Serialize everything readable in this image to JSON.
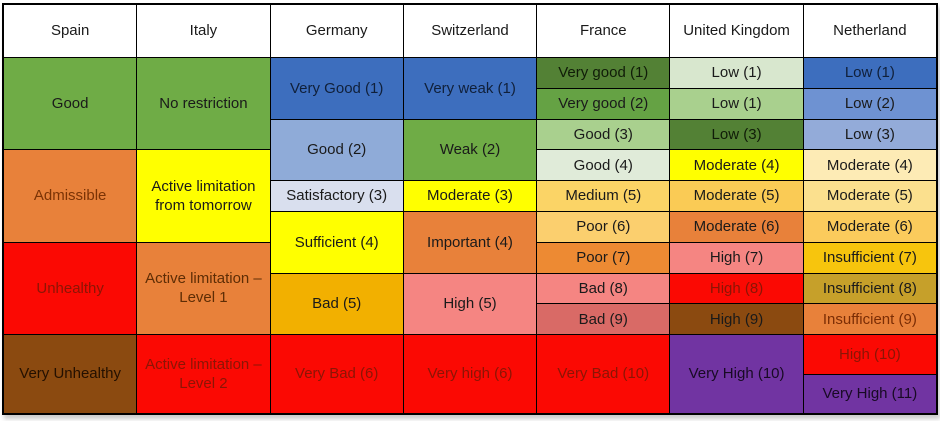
{
  "chart_data": {
    "type": "table",
    "title": "Air quality index categories and activity limitation levels by country",
    "grid": {
      "header_rows": 1,
      "body_rows": 11,
      "columns_count": 7,
      "gridlines": "black"
    },
    "columns": [
      {
        "header": "Spain",
        "cells": [
          {
            "label": "Good",
            "row": 1,
            "span": 3,
            "bg": "#6FAC46",
            "fg": "#1A1A1A"
          },
          {
            "label": "Admissible",
            "row": 4,
            "span": 3,
            "bg": "#E8813A",
            "fg": "#7B3305"
          },
          {
            "label": "Unhealthy",
            "row": 7,
            "span": 3,
            "bg": "#FB0903",
            "fg": "#8B1505"
          },
          {
            "label": "Very Unhealthy",
            "row": 10,
            "span": 2,
            "bg": "#8B4A10",
            "fg": "#241000"
          }
        ]
      },
      {
        "header": "Italy",
        "cells": [
          {
            "label": "No restriction",
            "row": 1,
            "span": 3,
            "bg": "#6FAC46",
            "fg": "#1A1A1A"
          },
          {
            "label": "Active limitation from tomorrow",
            "row": 4,
            "span": 3,
            "bg": "#FFFF00",
            "fg": "#1A1A1A"
          },
          {
            "label": "Active limitation – Level 1",
            "row": 7,
            "span": 3,
            "bg": "#E8813A",
            "fg": "#5E2D05"
          },
          {
            "label": "Active limitation – Level 2",
            "row": 10,
            "span": 2,
            "bg": "#FB0903",
            "fg": "#8B1505"
          }
        ]
      },
      {
        "header": "Germany",
        "cells": [
          {
            "label": "Very Good (1)",
            "row": 1,
            "span": 2,
            "bg": "#3D6EBE",
            "fg": "#10203A"
          },
          {
            "label": "Good (2)",
            "row": 3,
            "span": 2,
            "bg": "#8FABD8",
            "fg": "#1A1A1A"
          },
          {
            "label": "Satisfactory (3)",
            "row": 5,
            "span": 1,
            "bg": "#D9DFEE",
            "fg": "#1A1A1A"
          },
          {
            "label": "Sufficient (4)",
            "row": 6,
            "span": 2,
            "bg": "#FFFF00",
            "fg": "#1A1A1A"
          },
          {
            "label": "Bad (5)",
            "row": 8,
            "span": 2,
            "bg": "#F2B000",
            "fg": "#1A1A1A"
          },
          {
            "label": "Very Bad (6)",
            "row": 10,
            "span": 2,
            "bg": "#FB0903",
            "fg": "#8B1505"
          }
        ]
      },
      {
        "header": "Switzerland",
        "cells": [
          {
            "label": "Very weak (1)",
            "row": 1,
            "span": 2,
            "bg": "#3D6EBE",
            "fg": "#10203A"
          },
          {
            "label": "Weak (2)",
            "row": 3,
            "span": 2,
            "bg": "#6FAC46",
            "fg": "#1A1A1A"
          },
          {
            "label": "Moderate (3)",
            "row": 5,
            "span": 1,
            "bg": "#FFFF00",
            "fg": "#1A1A1A"
          },
          {
            "label": "Important (4)",
            "row": 6,
            "span": 2,
            "bg": "#E8813A",
            "fg": "#1A1A1A"
          },
          {
            "label": "High (5)",
            "row": 8,
            "span": 2,
            "bg": "#F58582",
            "fg": "#1A1A1A"
          },
          {
            "label": "Very high (6)",
            "row": 10,
            "span": 2,
            "bg": "#FB0903",
            "fg": "#8B1505"
          }
        ]
      },
      {
        "header": "France",
        "cells": [
          {
            "label": "Very good (1)",
            "row": 1,
            "span": 1,
            "bg": "#538135",
            "fg": "#101C08"
          },
          {
            "label": "Very good (2)",
            "row": 2,
            "span": 1,
            "bg": "#65A244",
            "fg": "#1A1A1A"
          },
          {
            "label": "Good (3)",
            "row": 3,
            "span": 1,
            "bg": "#A9D08E",
            "fg": "#1A1A1A"
          },
          {
            "label": "Good (4)",
            "row": 4,
            "span": 1,
            "bg": "#E0EBD9",
            "fg": "#1A1A1A"
          },
          {
            "label": "Medium (5)",
            "row": 5,
            "span": 1,
            "bg": "#FBD466",
            "fg": "#1A1A1A"
          },
          {
            "label": "Poor (6)",
            "row": 6,
            "span": 1,
            "bg": "#FBCF6E",
            "fg": "#1A1A1A"
          },
          {
            "label": "Poor (7)",
            "row": 7,
            "span": 1,
            "bg": "#ED8A33",
            "fg": "#1A1A1A"
          },
          {
            "label": "Bad (8)",
            "row": 8,
            "span": 1,
            "bg": "#F58582",
            "fg": "#1A1A1A"
          },
          {
            "label": "Bad (9)",
            "row": 9,
            "span": 1,
            "bg": "#D96A66",
            "fg": "#1A1A1A"
          },
          {
            "label": "Very Bad (10)",
            "row": 10,
            "span": 2,
            "bg": "#FB0903",
            "fg": "#8B1505"
          }
        ]
      },
      {
        "header": "United Kingdom",
        "cells": [
          {
            "label": "Low (1)",
            "row": 1,
            "span": 1,
            "bg": "#D8E7CE",
            "fg": "#1A1A1A"
          },
          {
            "label": "Low (1)",
            "row": 2,
            "span": 1,
            "bg": "#A9D08E",
            "fg": "#1A1A1A"
          },
          {
            "label": "Low (3)",
            "row": 3,
            "span": 1,
            "bg": "#538135",
            "fg": "#101C08"
          },
          {
            "label": "Moderate (4)",
            "row": 4,
            "span": 1,
            "bg": "#FFFF00",
            "fg": "#1A1A1A"
          },
          {
            "label": "Moderate (5)",
            "row": 5,
            "span": 1,
            "bg": "#FACB55",
            "fg": "#1A1A1A"
          },
          {
            "label": "Moderate (6)",
            "row": 6,
            "span": 1,
            "bg": "#E8813A",
            "fg": "#1A1A1A"
          },
          {
            "label": "High (7)",
            "row": 7,
            "span": 1,
            "bg": "#F58582",
            "fg": "#1A1A1A"
          },
          {
            "label": "High (8)",
            "row": 8,
            "span": 1,
            "bg": "#FB0903",
            "fg": "#8B1505"
          },
          {
            "label": "High (9)",
            "row": 9,
            "span": 1,
            "bg": "#8B4A10",
            "fg": "#1A1A1A"
          },
          {
            "label": "Very High (10)",
            "row": 10,
            "span": 2,
            "bg": "#7134A2",
            "fg": "#180A24"
          }
        ]
      },
      {
        "header": "Netherland",
        "cells": [
          {
            "label": "Low (1)",
            "row": 1,
            "span": 1,
            "bg": "#3D6EBE",
            "fg": "#10203A"
          },
          {
            "label": "Low (2)",
            "row": 2,
            "span": 1,
            "bg": "#6E92D2",
            "fg": "#1A1A1A"
          },
          {
            "label": "Low (3)",
            "row": 3,
            "span": 1,
            "bg": "#93ABD9",
            "fg": "#1A1A1A"
          },
          {
            "label": "Moderate (4)",
            "row": 4,
            "span": 1,
            "bg": "#FDEBB5",
            "fg": "#1A1A1A"
          },
          {
            "label": "Moderate (5)",
            "row": 5,
            "span": 1,
            "bg": "#FBE08E",
            "fg": "#1A1A1A"
          },
          {
            "label": "Moderate (6)",
            "row": 6,
            "span": 1,
            "bg": "#FBCB5C",
            "fg": "#1A1A1A"
          },
          {
            "label": "Insufficient (7)",
            "row": 7,
            "span": 1,
            "bg": "#F7C50D",
            "fg": "#1A1A1A"
          },
          {
            "label": "Insufficient (8)",
            "row": 8,
            "span": 1,
            "bg": "#C6A02A",
            "fg": "#1A1A1A"
          },
          {
            "label": "Insufficient (9)",
            "row": 9,
            "span": 1,
            "bg": "#E8813A",
            "fg": "#7B2D05"
          },
          {
            "label": "High (10)",
            "row": 10,
            "span": 1,
            "bg": "#FB0903",
            "fg": "#8B1505"
          },
          {
            "label": "Very High (11)",
            "row": 11,
            "span": 1,
            "bg": "#7134A2",
            "fg": "#180A24"
          }
        ]
      }
    ]
  }
}
